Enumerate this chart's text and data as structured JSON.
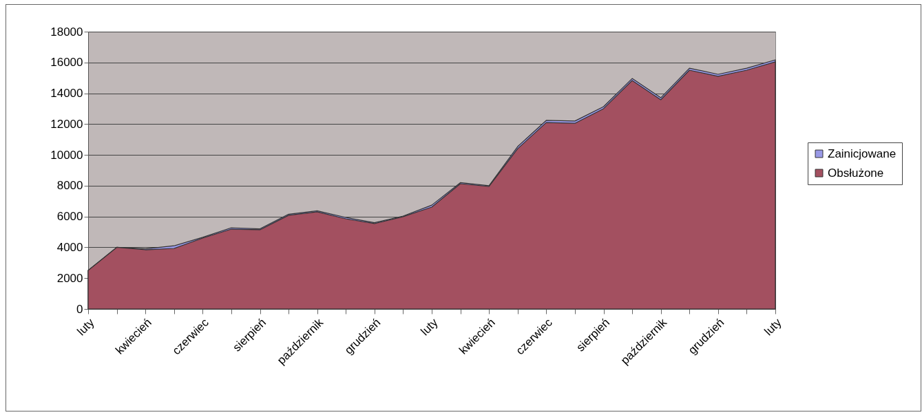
{
  "chart_data": {
    "type": "area",
    "categories": [
      "luty",
      null,
      "kwiecień",
      null,
      "czerwiec",
      null,
      "sierpień",
      null,
      "październik",
      null,
      "grudzień",
      null,
      "luty",
      null,
      "kwiecień",
      null,
      "czerwiec",
      null,
      "sierpień",
      null,
      "październik",
      null,
      "grudzień",
      null,
      "luty"
    ],
    "series": [
      {
        "name": "Zainicjowane",
        "color": "#9999e6",
        "values": [
          2500,
          4000,
          3900,
          4100,
          4650,
          5270,
          5200,
          6150,
          6370,
          5940,
          5600,
          6030,
          6740,
          8200,
          8000,
          10540,
          12240,
          12200,
          13130,
          14960,
          13710,
          15630,
          15230,
          15630,
          16170
        ]
      },
      {
        "name": "Obsłużone",
        "color": "#a35060",
        "values": [
          2500,
          4000,
          3840,
          3930,
          4600,
          5180,
          5140,
          6080,
          6300,
          5850,
          5540,
          5990,
          6610,
          8130,
          7950,
          10400,
          12100,
          12050,
          13000,
          14830,
          13580,
          15500,
          15100,
          15500,
          16040
        ]
      }
    ],
    "ylim": [
      0,
      18000
    ],
    "yticks": [
      0,
      2000,
      4000,
      6000,
      8000,
      10000,
      12000,
      14000,
      16000,
      18000
    ],
    "grid": "y",
    "legend": "right"
  }
}
